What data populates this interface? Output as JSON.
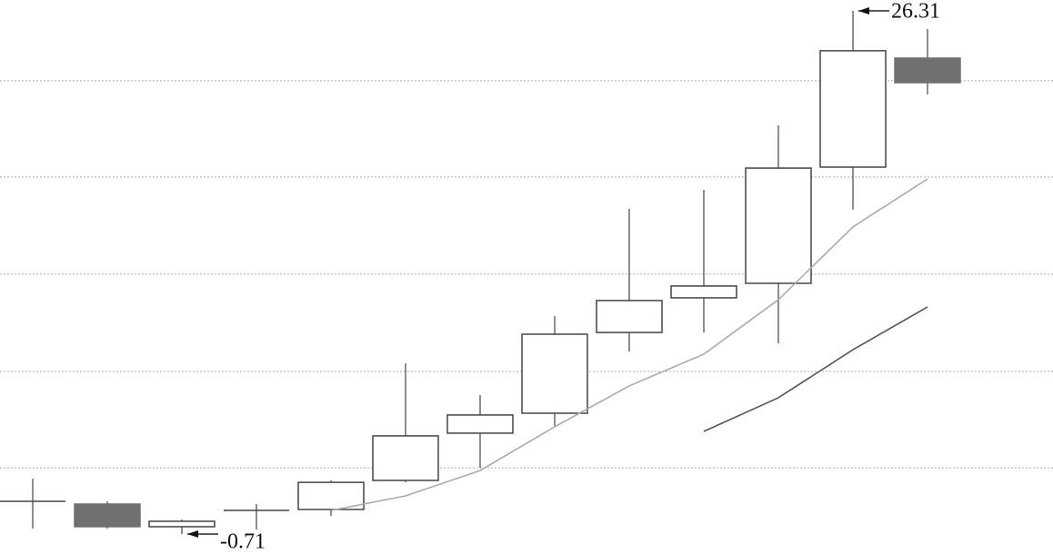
{
  "chart_data": {
    "type": "candlestick",
    "categories": [
      null,
      null,
      null,
      null,
      null,
      null,
      null,
      null,
      null,
      null,
      null,
      null,
      null
    ],
    "open": [
      0.98,
      0.84,
      -0.33,
      0.51,
      0.56,
      2.06,
      4.5,
      5.53,
      9.7,
      11.49,
      12.24,
      18.24,
      23.87
    ],
    "close": [
      0.98,
      -0.33,
      -0.05,
      0.51,
      1.96,
      4.36,
      5.44,
      9.61,
      11.35,
      12.1,
      18.19,
      24.25,
      22.6
    ],
    "high": [
      2.15,
      0.98,
      0.04,
      0.84,
      2.06,
      8.11,
      6.47,
      10.55,
      16.08,
      17.07,
      20.4,
      26.31,
      25.37
    ],
    "low": [
      -0.43,
      -0.43,
      -0.71,
      -0.48,
      0.23,
      1.96,
      2.71,
      4.83,
      8.72,
      9.7,
      9.14,
      16.04,
      21.99
    ],
    "up_color": "#ffffff",
    "down_color": "#707070",
    "series": [
      {
        "color": "#aaaaaa",
        "values": [
          null,
          null,
          null,
          null,
          0.51,
          1.26,
          2.57,
          4.83,
          6.94,
          8.58,
          11.39,
          15.15,
          17.63
        ]
      },
      {
        "color": "#555555",
        "values": [
          null,
          null,
          null,
          null,
          null,
          null,
          null,
          null,
          null,
          4.59,
          6.33,
          8.81,
          11.02
        ]
      }
    ],
    "ylim": [
      -1.74,
      26.87
    ],
    "yticks": [
      2.71,
      7.69,
      12.71,
      17.73,
      22.7
    ],
    "grid": true,
    "annotations": [
      {
        "label": "26.31",
        "value": 26.31,
        "index": 11
      },
      {
        "label": "-0.71",
        "value": -0.71,
        "index": 2
      }
    ]
  }
}
